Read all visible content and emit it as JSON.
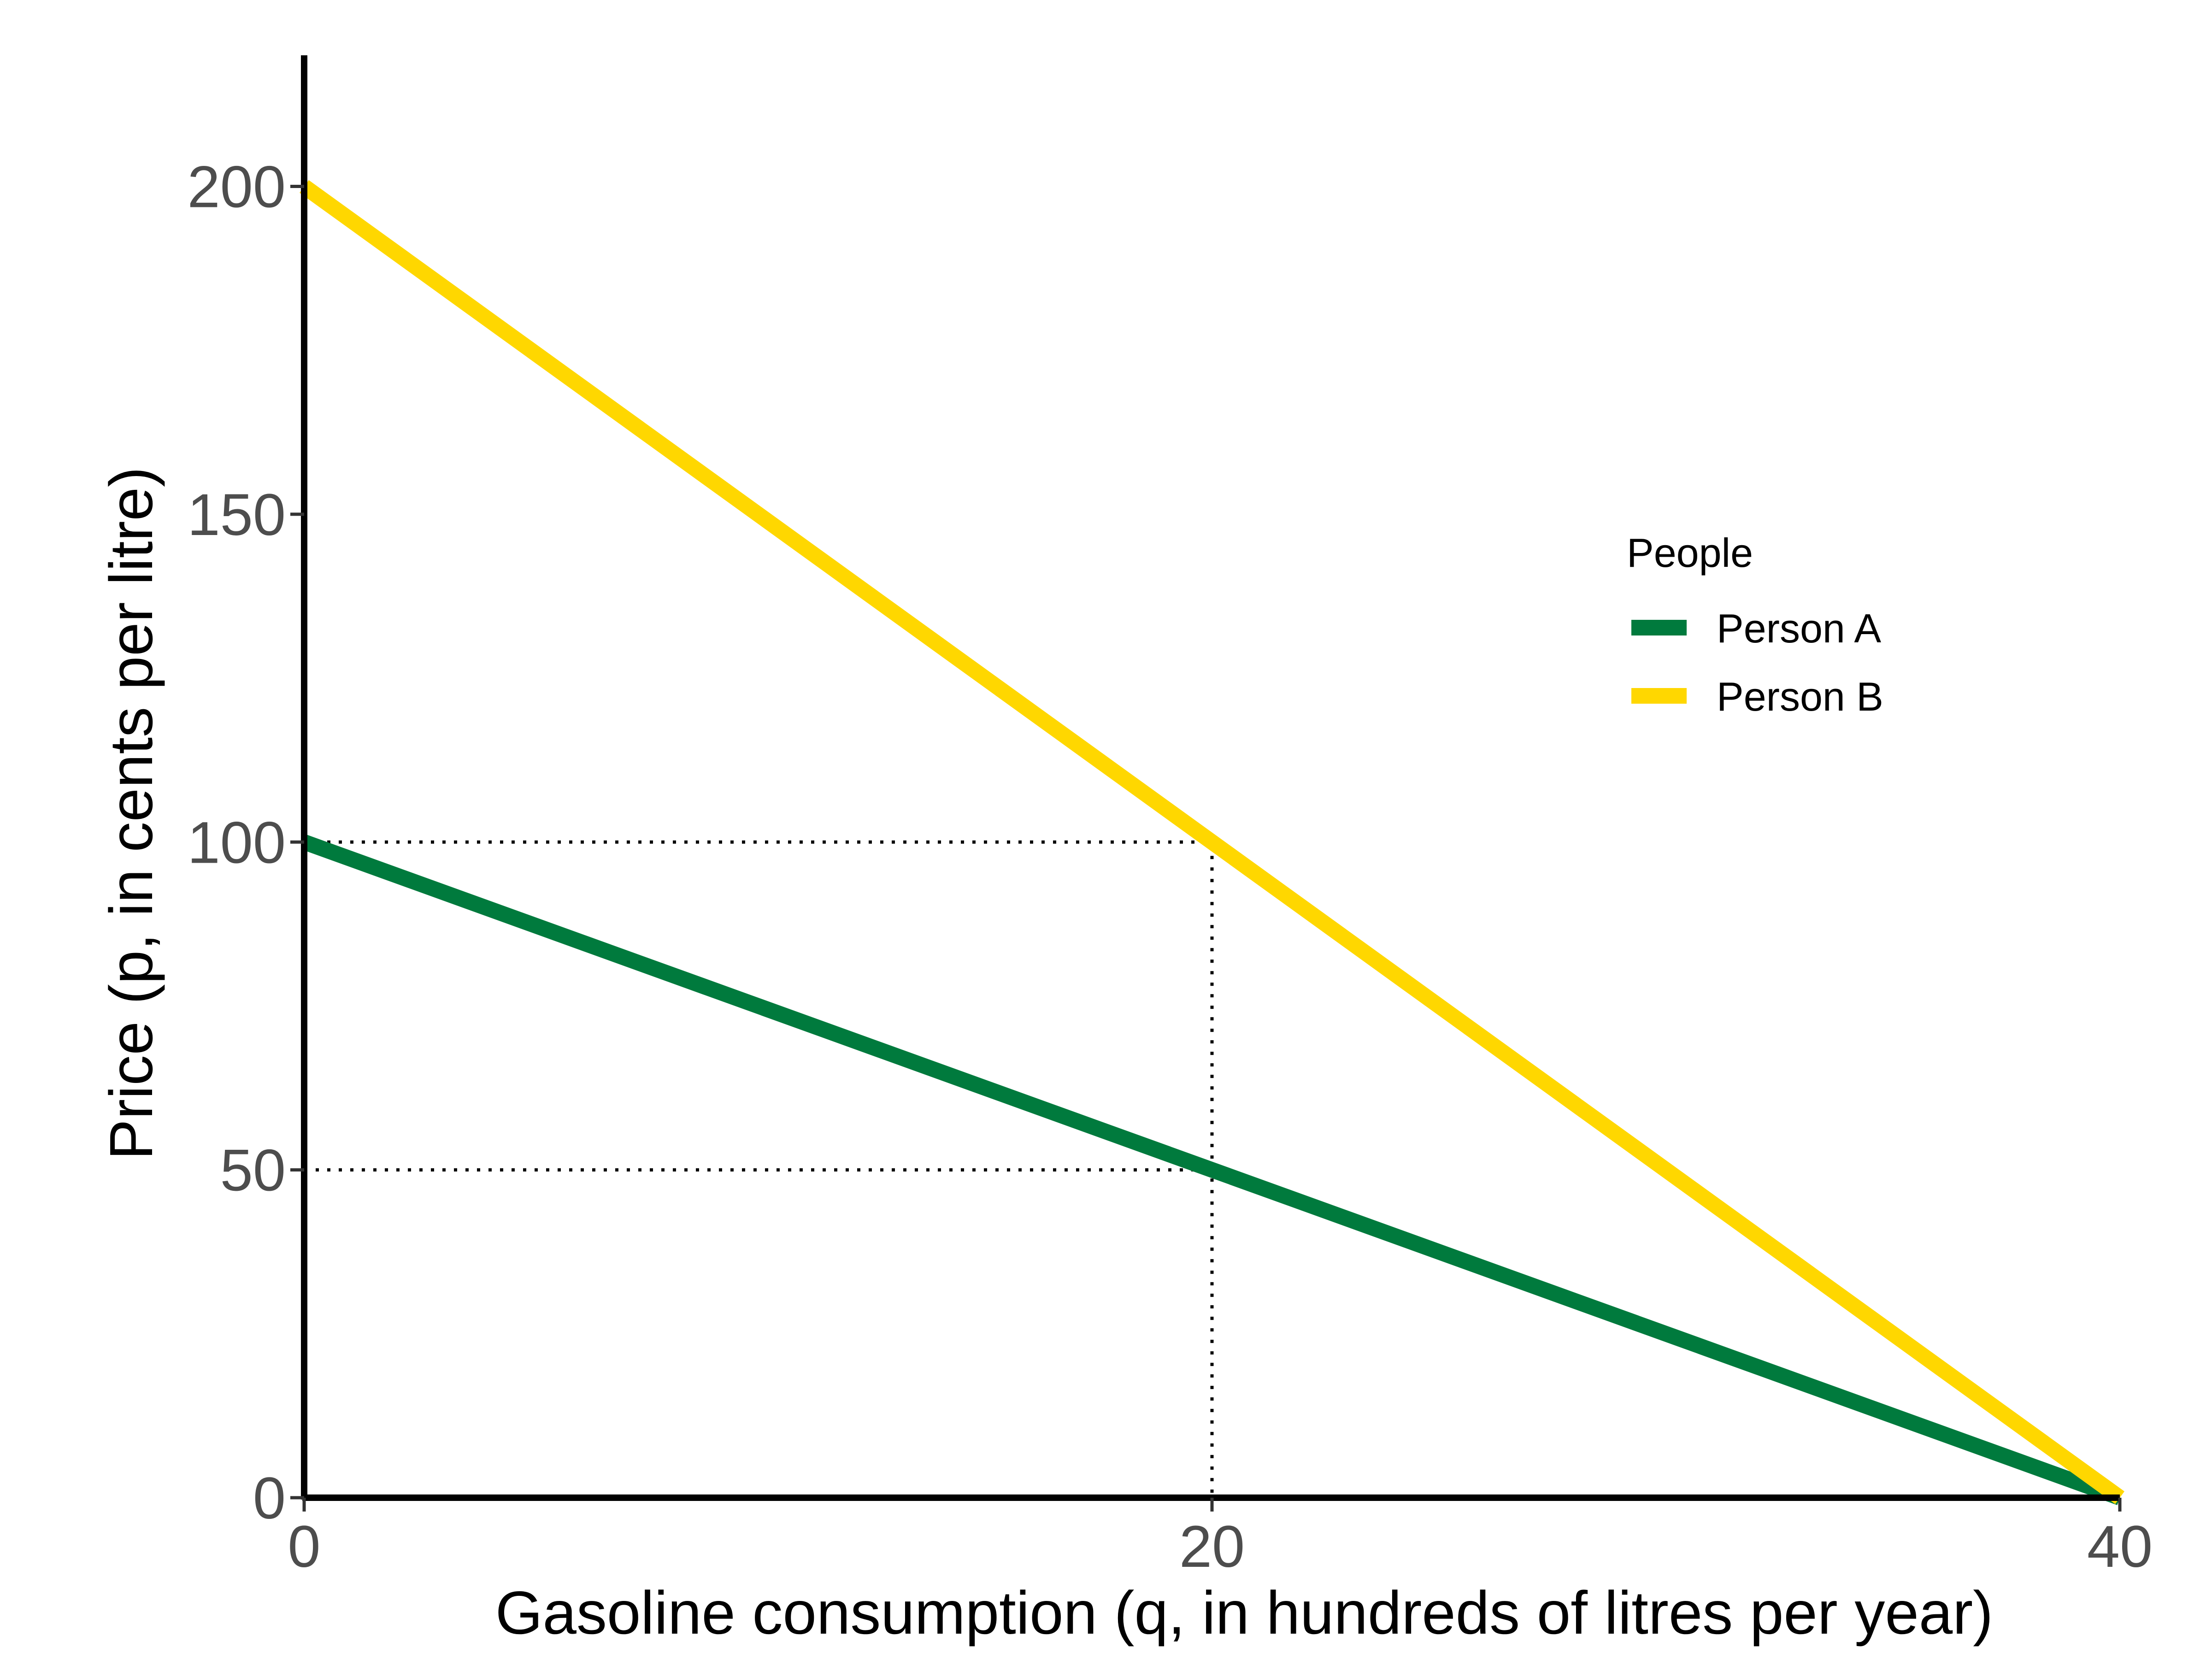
{
  "chart_data": {
    "type": "line",
    "title": "",
    "xlabel": "Gasoline consumption (q, in hundreds of litres per year)",
    "ylabel": "Price (p, in cents per litre)",
    "xlim": [
      0,
      40
    ],
    "ylim": [
      0,
      220
    ],
    "x_ticks": [
      0,
      20,
      40
    ],
    "y_ticks": [
      0,
      50,
      100,
      150,
      200
    ],
    "grid": false,
    "legend": {
      "title": "People",
      "position": "right"
    },
    "series": [
      {
        "name": "Person A",
        "color": "#007a3d",
        "points": [
          [
            0,
            100
          ],
          [
            40,
            0
          ]
        ]
      },
      {
        "name": "Person B",
        "color": "#ffd700",
        "points": [
          [
            0,
            200
          ],
          [
            40,
            0
          ]
        ]
      }
    ],
    "reference_lines": [
      {
        "style": "dotted",
        "points": [
          [
            0,
            100
          ],
          [
            20,
            100
          ],
          [
            20,
            0
          ]
        ]
      },
      {
        "style": "dotted",
        "points": [
          [
            0,
            50
          ],
          [
            20,
            50
          ]
        ]
      }
    ]
  }
}
